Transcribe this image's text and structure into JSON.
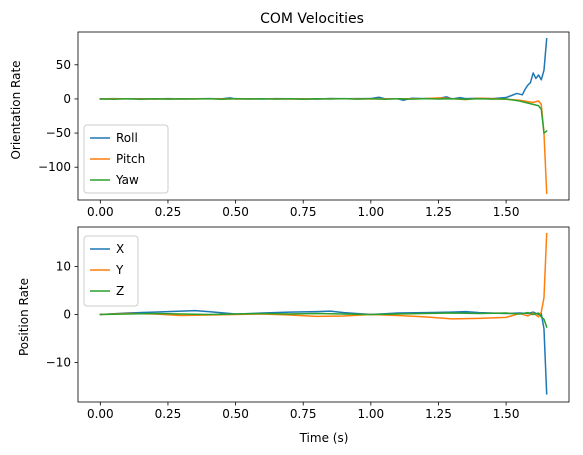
{
  "chart_data": [
    {
      "type": "line",
      "title": "COM Velocities",
      "xlabel": "",
      "ylabel": "Orientation Rate",
      "xlim": [
        -0.0825,
        1.7325
      ],
      "ylim": [
        -148,
        98
      ],
      "xticks": [
        0.0,
        0.25,
        0.5,
        0.75,
        1.0,
        1.25,
        1.5
      ],
      "xtick_labels": [
        "0.00",
        "0.25",
        "0.50",
        "0.75",
        "1.00",
        "1.25",
        "1.50"
      ],
      "show_xtick_labels": true,
      "yticks": [
        50,
        0,
        -50,
        -100
      ],
      "ytick_labels": [
        "50",
        "0",
        "−50",
        "−100"
      ],
      "grid": false,
      "legend": "lower-left",
      "series": [
        {
          "name": "Roll",
          "color": "#1f77b4",
          "x": [
            0,
            0.05,
            0.1,
            0.15,
            0.2,
            0.25,
            0.3,
            0.35,
            0.4,
            0.45,
            0.48,
            0.5,
            0.55,
            0.6,
            0.65,
            0.7,
            0.75,
            0.8,
            0.85,
            0.9,
            0.95,
            1.0,
            1.03,
            1.05,
            1.1,
            1.12,
            1.15,
            1.2,
            1.25,
            1.28,
            1.3,
            1.33,
            1.35,
            1.4,
            1.45,
            1.5,
            1.52,
            1.54,
            1.56,
            1.57,
            1.58,
            1.59,
            1.6,
            1.61,
            1.62,
            1.63,
            1.64,
            1.65
          ],
          "y": [
            0,
            0.5,
            0,
            0.3,
            -0.2,
            0.4,
            0,
            0.2,
            0.5,
            0.3,
            1.5,
            0,
            0.3,
            -0.2,
            0.5,
            0.2,
            0.1,
            -0.3,
            0.6,
            0.2,
            0.4,
            0.5,
            2.5,
            0.5,
            0.3,
            -2,
            1,
            0.5,
            0.8,
            3,
            0,
            2,
            0.5,
            1,
            0.5,
            2,
            5,
            8,
            6,
            14,
            20,
            24,
            38,
            30,
            35,
            28,
            42,
            88
          ]
        },
        {
          "name": "Pitch",
          "color": "#ff7f0e",
          "x": [
            0,
            0.1,
            0.2,
            0.3,
            0.4,
            0.5,
            0.6,
            0.7,
            0.8,
            0.9,
            1.0,
            1.1,
            1.2,
            1.25,
            1.3,
            1.35,
            1.4,
            1.45,
            1.5,
            1.55,
            1.58,
            1.6,
            1.62,
            1.63,
            1.64,
            1.65
          ],
          "y": [
            0,
            0.2,
            -0.2,
            0.1,
            0.3,
            -0.1,
            0.2,
            -0.2,
            0.1,
            0.2,
            -0.1,
            0.3,
            0.5,
            1.5,
            0.5,
            -1,
            1,
            0.5,
            -0.5,
            -2,
            -4,
            -5,
            -3,
            -8,
            -50,
            -138
          ]
        },
        {
          "name": "Yaw",
          "color": "#2ca02c",
          "x": [
            0,
            0.05,
            0.1,
            0.15,
            0.2,
            0.25,
            0.3,
            0.35,
            0.4,
            0.45,
            0.5,
            0.55,
            0.6,
            0.65,
            0.7,
            0.75,
            0.8,
            0.85,
            0.9,
            0.95,
            1.0,
            1.05,
            1.1,
            1.15,
            1.2,
            1.25,
            1.3,
            1.35,
            1.4,
            1.45,
            1.5,
            1.55,
            1.57,
            1.6,
            1.62,
            1.63,
            1.64,
            1.65
          ],
          "y": [
            0,
            -0.5,
            0.3,
            -0.5,
            0.2,
            -0.3,
            0.1,
            -0.2,
            0.3,
            -0.4,
            0.5,
            -0.2,
            0.3,
            -0.3,
            0.2,
            -0.5,
            0.3,
            -0.2,
            0.4,
            -0.3,
            0.5,
            -0.4,
            0.2,
            -0.3,
            0.5,
            -0.2,
            0.3,
            -0.5,
            0.2,
            -0.3,
            0,
            -3,
            -5,
            -8,
            -10,
            -15,
            -50,
            -47
          ]
        }
      ]
    },
    {
      "type": "line",
      "title": "",
      "xlabel": "Time (s)",
      "ylabel": "Position Rate",
      "xlim": [
        -0.0825,
        1.7325
      ],
      "ylim": [
        -18.2,
        18.2
      ],
      "xticks": [
        0.0,
        0.25,
        0.5,
        0.75,
        1.0,
        1.25,
        1.5
      ],
      "xtick_labels": [
        "0.00",
        "0.25",
        "0.50",
        "0.75",
        "1.00",
        "1.25",
        "1.50"
      ],
      "show_xtick_labels": true,
      "yticks": [
        10,
        0,
        -10
      ],
      "ytick_labels": [
        "10",
        "0",
        "−10"
      ],
      "grid": false,
      "legend": "top-left",
      "series": [
        {
          "name": "X",
          "color": "#1f77b4",
          "x": [
            0,
            0.1,
            0.2,
            0.3,
            0.35,
            0.4,
            0.5,
            0.6,
            0.7,
            0.8,
            0.85,
            0.9,
            1.0,
            1.1,
            1.2,
            1.3,
            1.35,
            1.4,
            1.5,
            1.55,
            1.58,
            1.6,
            1.62,
            1.63,
            1.64,
            1.65
          ],
          "y": [
            0,
            0.3,
            0.5,
            0.7,
            0.8,
            0.6,
            0.1,
            0.3,
            0.5,
            0.6,
            0.7,
            0.4,
            0,
            0.3,
            0.4,
            0.5,
            0.6,
            0.4,
            0.2,
            0.3,
            0.2,
            0.5,
            0,
            0.2,
            -3,
            -16.5
          ]
        },
        {
          "name": "Y",
          "color": "#ff7f0e",
          "x": [
            0,
            0.1,
            0.2,
            0.3,
            0.4,
            0.5,
            0.6,
            0.7,
            0.8,
            0.9,
            1.0,
            1.1,
            1.2,
            1.3,
            1.4,
            1.5,
            1.55,
            1.58,
            1.6,
            1.62,
            1.63,
            1.64,
            1.65
          ],
          "y": [
            0,
            0.2,
            0.1,
            -0.2,
            -0.1,
            0,
            0.1,
            -0.1,
            -0.4,
            -0.3,
            0,
            -0.2,
            -0.5,
            -0.9,
            -0.8,
            -0.6,
            0.2,
            -0.3,
            0.3,
            -0.5,
            0.5,
            3.5,
            16.8
          ]
        },
        {
          "name": "Z",
          "color": "#2ca02c",
          "x": [
            0,
            0.1,
            0.2,
            0.3,
            0.4,
            0.5,
            0.6,
            0.7,
            0.8,
            0.9,
            1.0,
            1.1,
            1.2,
            1.3,
            1.4,
            1.5,
            1.55,
            1.58,
            1.6,
            1.62,
            1.63,
            1.64,
            1.65
          ],
          "y": [
            0,
            0.1,
            0.2,
            0.1,
            0,
            0.1,
            0.2,
            0.1,
            0.2,
            0.1,
            0,
            0.1,
            0.2,
            0.3,
            0.2,
            0.3,
            0.1,
            0.4,
            0,
            0.3,
            -0.5,
            -1,
            -2.6
          ]
        }
      ]
    }
  ]
}
